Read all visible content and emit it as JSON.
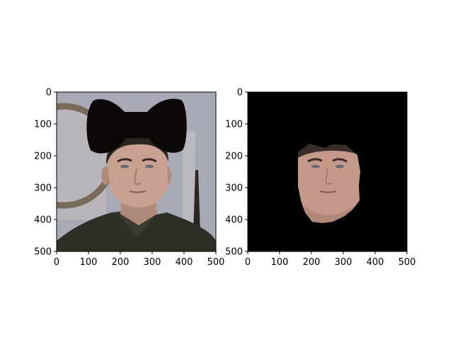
{
  "figure": {
    "background": "#ffffff"
  },
  "chart_data": [
    {
      "type": "image",
      "title": "",
      "xlabel": "",
      "ylabel": "",
      "xlim": [
        0,
        500
      ],
      "ylim": [
        500,
        0
      ],
      "xticks": [
        0,
        100,
        200,
        300,
        400,
        500
      ],
      "yticks": [
        0,
        100,
        200,
        300,
        400,
        500
      ],
      "grid": false,
      "content": "photograph of a young man with black mask shapes over upper part of image",
      "colors": {
        "background": "#a7a9b4",
        "mask": "#0d0808",
        "skin": "#c9a190",
        "hair": "#2b2320",
        "shirt": "#2e2f27"
      }
    },
    {
      "type": "image",
      "title": "",
      "xlabel": "",
      "ylabel": "",
      "xlim": [
        0,
        500
      ],
      "ylim": [
        500,
        0
      ],
      "xticks": [
        0,
        100,
        200,
        300,
        400,
        500
      ],
      "yticks": [
        0,
        100,
        200,
        300,
        400,
        500
      ],
      "grid": false,
      "content": "cropped face region on black background",
      "colors": {
        "background": "#000000",
        "skin": "#c9a190"
      }
    }
  ]
}
